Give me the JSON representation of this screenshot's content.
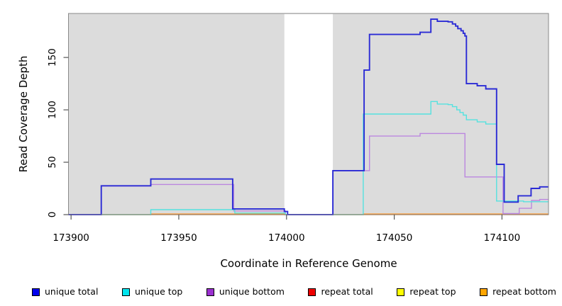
{
  "figure": {
    "y_axis_label": "Read Coverage Depth",
    "x_axis_label": "Coordinate in Reference Genome"
  },
  "chart_data": {
    "type": "line",
    "subtype": "step-coverage",
    "title": "",
    "xlabel": "Coordinate in Reference Genome",
    "ylabel": "Read Coverage Depth",
    "x_domain": [
      173898.8,
      174121.6
    ],
    "y_domain": [
      0,
      192
    ],
    "x_ticks": [
      173900,
      173950,
      174000,
      174050,
      174100
    ],
    "y_ticks": [
      0,
      50,
      100,
      150
    ],
    "grid": "off",
    "legend_position": "bottom",
    "plot_bg_color": "#DCDCDC",
    "plot_border_color": "#8A8A8A",
    "missing_data_band": {
      "x_start": 173999,
      "x_end": 174021.5,
      "color": "#FFFFFF"
    },
    "series": [
      {
        "name": "unique total",
        "color": "#2B2BD5",
        "swatch": "#0000EE",
        "line_width": 1.9,
        "points": [
          [
            173898.8,
            0
          ],
          [
            173914,
            27.5
          ],
          [
            173937,
            34
          ],
          [
            173975,
            5.5
          ],
          [
            173999,
            3
          ],
          [
            174000.5,
            0
          ],
          [
            174021.5,
            42
          ],
          [
            174036,
            138
          ],
          [
            174038.5,
            172
          ],
          [
            174062,
            174
          ],
          [
            174067,
            186.5
          ],
          [
            174070,
            184.5
          ],
          [
            174075,
            184
          ],
          [
            174077,
            182
          ],
          [
            174078.5,
            180
          ],
          [
            174079.5,
            177.5
          ],
          [
            174081,
            175.5
          ],
          [
            174082,
            173
          ],
          [
            174082.8,
            170.5
          ],
          [
            174083.5,
            125
          ],
          [
            174088.5,
            123
          ],
          [
            174092.5,
            120
          ],
          [
            174097.5,
            48
          ],
          [
            174101,
            12
          ],
          [
            174107.5,
            18
          ],
          [
            174113.5,
            25
          ],
          [
            174117.5,
            26.5
          ]
        ]
      },
      {
        "name": "unique top",
        "color": "#55E2DF",
        "swatch": "#00E5EE",
        "line_width": 1.4,
        "points": [
          [
            173898.8,
            0
          ],
          [
            173937,
            4.7
          ],
          [
            173976,
            1.5
          ],
          [
            173999.5,
            0
          ],
          [
            174035.6,
            96
          ],
          [
            174067,
            108
          ],
          [
            174070,
            105.5
          ],
          [
            174075,
            105
          ],
          [
            174077,
            103
          ],
          [
            174079,
            100
          ],
          [
            174080.5,
            97.5
          ],
          [
            174082,
            95
          ],
          [
            174083.5,
            90.5
          ],
          [
            174088.5,
            88.5
          ],
          [
            174092.5,
            86.5
          ],
          [
            174097.5,
            13
          ],
          [
            174110,
            12.3
          ]
        ]
      },
      {
        "name": "unique bottom",
        "color": "#BB86DF",
        "swatch": "#9B30D0",
        "line_width": 1.4,
        "points": [
          [
            173898.8,
            0
          ],
          [
            173914,
            27.3
          ],
          [
            173937,
            28.8
          ],
          [
            173975.5,
            3.5
          ],
          [
            173999.5,
            0
          ],
          [
            174021.5,
            42
          ],
          [
            174038.5,
            75
          ],
          [
            174062,
            77.5
          ],
          [
            174082.8,
            36
          ],
          [
            174100.5,
            1
          ],
          [
            174108,
            6
          ],
          [
            174113.7,
            13.5
          ],
          [
            174117.5,
            14.5
          ]
        ]
      },
      {
        "name": "repeat total",
        "color": "#E04040",
        "swatch": "#EE0000",
        "line_width": 1.3,
        "points": [
          [
            173898.8,
            0
          ]
        ]
      },
      {
        "name": "repeat top",
        "color": "#EDED30",
        "swatch": "#FFFF00",
        "line_width": 1.3,
        "points": [
          [
            173898.8,
            0
          ]
        ]
      },
      {
        "name": "repeat bottom",
        "color": "#FF9D2E",
        "swatch": "#FFA500",
        "line_width": 1.4,
        "points": [
          [
            173898.8,
            0
          ],
          [
            173937,
            0.6
          ],
          [
            173999,
            0
          ],
          [
            174035.6,
            0.6
          ]
        ]
      }
    ]
  },
  "legend": {
    "items": [
      {
        "label": "unique total",
        "swatch": "#0000EE"
      },
      {
        "label": "unique top",
        "swatch": "#00E5EE"
      },
      {
        "label": "unique bottom",
        "swatch": "#9B30D0"
      },
      {
        "label": "repeat total",
        "swatch": "#EE0000"
      },
      {
        "label": "repeat top",
        "swatch": "#FFFF00"
      },
      {
        "label": "repeat bottom",
        "swatch": "#FFA500"
      }
    ]
  }
}
